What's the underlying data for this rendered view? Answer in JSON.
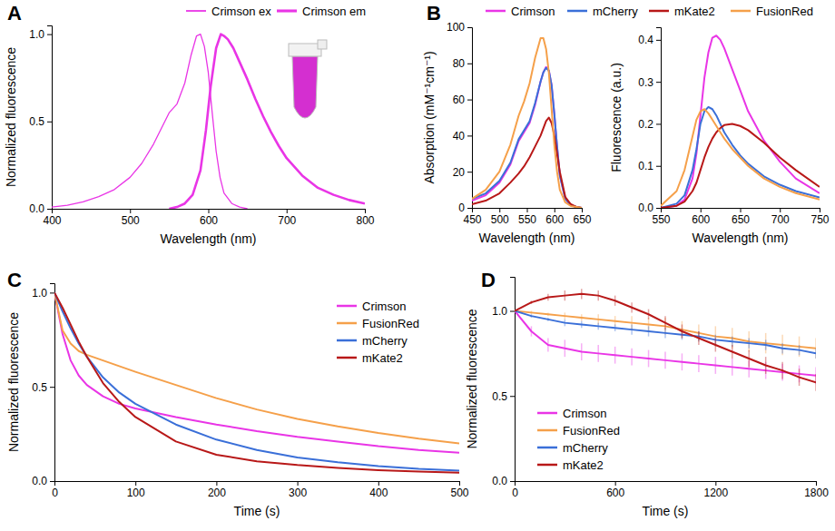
{
  "chart_data": [
    {
      "type": "line",
      "title": "A",
      "x_label": "Wavelength (nm)",
      "y_label": "Normalized fluorescence",
      "xlim": [
        400,
        800
      ],
      "xticks": [
        400,
        500,
        600,
        700,
        800
      ],
      "ylim": [
        0,
        1.05
      ],
      "yticks": [
        {
          "value": 0,
          "label": "0.0"
        },
        {
          "value": 0.5,
          "label": "0.5"
        },
        {
          "value": 1,
          "label": "1.0"
        }
      ],
      "legend": "top",
      "series": [
        {
          "name": "Crimson ex",
          "color": "#e935e6",
          "line_style": "thin",
          "x": [
            400,
            420,
            440,
            460,
            480,
            500,
            515,
            530,
            540,
            550,
            560,
            570,
            578,
            585,
            590,
            595,
            600,
            605,
            610,
            615,
            620,
            630,
            640,
            650
          ],
          "values": [
            0.01,
            0.02,
            0.04,
            0.07,
            0.11,
            0.18,
            0.26,
            0.37,
            0.46,
            0.55,
            0.6,
            0.72,
            0.88,
            0.99,
            1.0,
            0.93,
            0.78,
            0.55,
            0.33,
            0.18,
            0.09,
            0.03,
            0.01,
            0
          ]
        },
        {
          "name": "Crimson em",
          "color": "#e935e6",
          "line_style": "thick",
          "x": [
            550,
            560,
            570,
            580,
            590,
            597,
            603,
            610,
            616,
            620,
            625,
            632,
            640,
            650,
            660,
            670,
            680,
            690,
            700,
            720,
            740,
            760,
            780,
            800
          ],
          "values": [
            0,
            0.01,
            0.03,
            0.08,
            0.22,
            0.45,
            0.7,
            0.92,
            1.0,
            0.99,
            0.97,
            0.92,
            0.84,
            0.74,
            0.63,
            0.53,
            0.44,
            0.36,
            0.29,
            0.19,
            0.12,
            0.08,
            0.05,
            0.03
          ]
        }
      ]
    },
    {
      "type": "line",
      "title": "B",
      "x_label": "Wavelength (nm)",
      "y_label": "Absorption (mM⁻¹cm⁻¹)",
      "xlim": [
        450,
        650
      ],
      "xticks": [
        450,
        500,
        550,
        600,
        650
      ],
      "ylim": [
        0,
        100
      ],
      "yticks": [
        0,
        20,
        40,
        60,
        80,
        100
      ],
      "legend": "top",
      "x": [
        450,
        475,
        500,
        520,
        535,
        545,
        555,
        565,
        575,
        580,
        585,
        590,
        595,
        600,
        605,
        610,
        620,
        630,
        640,
        650
      ],
      "series": [
        {
          "name": "Crimson",
          "color": "#e935e6",
          "values": [
            4,
            7,
            14,
            24,
            37,
            42,
            47,
            57,
            70,
            75,
            78,
            76,
            68,
            52,
            34,
            18,
            5,
            1.5,
            0.5,
            0
          ]
        },
        {
          "name": "mCherry",
          "color": "#3a6fd8",
          "values": [
            5,
            8,
            15,
            25,
            38,
            43,
            48,
            58,
            70,
            75,
            77.5,
            76,
            68,
            52,
            34,
            18,
            5,
            1.5,
            0.5,
            0
          ]
        },
        {
          "name": "mKate2",
          "color": "#b81818",
          "values": [
            2,
            4,
            8,
            14,
            19,
            23,
            28,
            34,
            40,
            44,
            48,
            50,
            47,
            40,
            30,
            20,
            6,
            2,
            0.5,
            0
          ]
        },
        {
          "name": "FusionRed",
          "color": "#f5a04a",
          "values": [
            5,
            10,
            20,
            35,
            51,
            59,
            69,
            83,
            94,
            94,
            88,
            75,
            55,
            35,
            20,
            10,
            3,
            1,
            0.5,
            0
          ]
        }
      ]
    },
    {
      "type": "line",
      "x_label": "Wavelength (nm)",
      "y_label": "Fluorescence (a.u.)",
      "xlim": [
        550,
        750
      ],
      "xticks": [
        550,
        600,
        650,
        700,
        750
      ],
      "ylim": [
        0,
        0.43
      ],
      "yticks": [
        {
          "value": 0,
          "label": "0.0"
        },
        {
          "value": 0.1,
          "label": "0.1"
        },
        {
          "value": 0.2,
          "label": "0.2"
        },
        {
          "value": 0.3,
          "label": "0.3"
        },
        {
          "value": 0.4,
          "label": "0.4"
        }
      ],
      "x": [
        550,
        570,
        580,
        590,
        595,
        600,
        605,
        610,
        615,
        620,
        625,
        630,
        640,
        650,
        660,
        680,
        700,
        720,
        750
      ],
      "series": [
        {
          "color": "#e935e6",
          "values": [
            0,
            0.005,
            0.02,
            0.07,
            0.13,
            0.22,
            0.31,
            0.37,
            0.405,
            0.41,
            0.4,
            0.38,
            0.33,
            0.28,
            0.23,
            0.16,
            0.11,
            0.07,
            0.035
          ]
        },
        {
          "color": "#3a6fd8",
          "values": [
            0,
            0.01,
            0.03,
            0.09,
            0.14,
            0.2,
            0.23,
            0.24,
            0.235,
            0.22,
            0.2,
            0.18,
            0.15,
            0.125,
            0.105,
            0.075,
            0.055,
            0.04,
            0.025
          ]
        },
        {
          "color": "#b81818",
          "values": [
            0,
            0.005,
            0.015,
            0.04,
            0.06,
            0.09,
            0.12,
            0.145,
            0.165,
            0.18,
            0.19,
            0.197,
            0.2,
            0.195,
            0.185,
            0.155,
            0.12,
            0.09,
            0.05
          ]
        },
        {
          "color": "#f5a04a",
          "values": [
            0.005,
            0.04,
            0.09,
            0.17,
            0.21,
            0.23,
            0.235,
            0.225,
            0.21,
            0.195,
            0.18,
            0.165,
            0.14,
            0.12,
            0.1,
            0.07,
            0.05,
            0.035,
            0.02
          ]
        }
      ]
    },
    {
      "type": "line",
      "title": "C",
      "x_label": "Time (s)",
      "y_label": "Normalized fluorescence",
      "xlim": [
        0,
        500
      ],
      "xticks": [
        0,
        100,
        200,
        300,
        400,
        500
      ],
      "ylim": [
        0,
        1.05
      ],
      "yticks": [
        {
          "value": 0,
          "label": "0.0"
        },
        {
          "value": 0.5,
          "label": "0.5"
        },
        {
          "value": 1,
          "label": "1.0"
        }
      ],
      "legend": "upper right",
      "x": [
        0,
        10,
        20,
        30,
        40,
        60,
        80,
        100,
        150,
        200,
        250,
        300,
        350,
        400,
        450,
        500
      ],
      "series": [
        {
          "name": "Crimson",
          "color": "#e935e6",
          "values": [
            1,
            0.78,
            0.64,
            0.56,
            0.51,
            0.45,
            0.41,
            0.385,
            0.34,
            0.3,
            0.265,
            0.235,
            0.21,
            0.185,
            0.165,
            0.15
          ]
        },
        {
          "name": "FusionRed",
          "color": "#f5a04a",
          "values": [
            1,
            0.8,
            0.73,
            0.69,
            0.67,
            0.64,
            0.61,
            0.58,
            0.51,
            0.44,
            0.38,
            0.33,
            0.29,
            0.255,
            0.225,
            0.2
          ]
        },
        {
          "name": "mCherry",
          "color": "#3a6fd8",
          "values": [
            1,
            0.9,
            0.81,
            0.73,
            0.66,
            0.55,
            0.47,
            0.41,
            0.3,
            0.22,
            0.165,
            0.125,
            0.1,
            0.08,
            0.065,
            0.055
          ]
        },
        {
          "name": "mKate2",
          "color": "#b81818",
          "values": [
            1,
            0.92,
            0.83,
            0.74,
            0.66,
            0.52,
            0.42,
            0.34,
            0.21,
            0.14,
            0.105,
            0.085,
            0.07,
            0.058,
            0.05,
            0.045
          ]
        }
      ]
    },
    {
      "type": "line",
      "title": "D",
      "x_label": "Time (s)",
      "y_label": "Normalized fluorescence",
      "xlim": [
        0,
        1800
      ],
      "xticks": [
        0,
        600,
        1200,
        1800
      ],
      "ylim": [
        0,
        1.2
      ],
      "yticks": [
        {
          "value": 0,
          "label": "0.0"
        },
        {
          "value": 0.5,
          "label": "0.5"
        },
        {
          "value": 1,
          "label": "1.0"
        }
      ],
      "legend": "lower left",
      "x": [
        0,
        100,
        200,
        300,
        400,
        500,
        600,
        700,
        800,
        900,
        1000,
        1100,
        1200,
        1300,
        1400,
        1500,
        1600,
        1700,
        1800
      ],
      "series": [
        {
          "name": "Crimson",
          "color": "#e935e6",
          "values": [
            1,
            0.88,
            0.8,
            0.78,
            0.76,
            0.75,
            0.74,
            0.73,
            0.72,
            0.71,
            0.7,
            0.69,
            0.68,
            0.67,
            0.66,
            0.65,
            0.64,
            0.63,
            0.62
          ],
          "errors": [
            0,
            0.03,
            0.04,
            0.05,
            0.05,
            0.05,
            0.05,
            0.05,
            0.05,
            0.05,
            0.05,
            0.05,
            0.05,
            0.05,
            0.05,
            0.05,
            0.05,
            0.05,
            0.05
          ]
        },
        {
          "name": "FusionRed",
          "color": "#f5a04a",
          "values": [
            1,
            0.99,
            0.98,
            0.97,
            0.96,
            0.95,
            0.94,
            0.93,
            0.92,
            0.91,
            0.89,
            0.87,
            0.85,
            0.84,
            0.82,
            0.81,
            0.8,
            0.79,
            0.78
          ],
          "errors": [
            0,
            0.01,
            0.01,
            0.02,
            0.02,
            0.03,
            0.03,
            0.04,
            0.04,
            0.05,
            0.05,
            0.05,
            0.06,
            0.06,
            0.06,
            0.06,
            0.06,
            0.06,
            0.06
          ]
        },
        {
          "name": "mCherry",
          "color": "#3a6fd8",
          "values": [
            1,
            0.97,
            0.95,
            0.93,
            0.92,
            0.91,
            0.9,
            0.89,
            0.88,
            0.87,
            0.86,
            0.85,
            0.83,
            0.82,
            0.81,
            0.8,
            0.78,
            0.77,
            0.75
          ],
          "errors": [
            0,
            0.01,
            0.01,
            0.02,
            0.02,
            0.02,
            0.02,
            0.03,
            0.03,
            0.03,
            0.03,
            0.03,
            0.03,
            0.03,
            0.03,
            0.03,
            0.03,
            0.03,
            0.03
          ]
        },
        {
          "name": "mKate2",
          "color": "#b81818",
          "values": [
            1,
            1.05,
            1.08,
            1.09,
            1.1,
            1.09,
            1.06,
            1.02,
            0.98,
            0.93,
            0.88,
            0.84,
            0.8,
            0.76,
            0.72,
            0.68,
            0.65,
            0.61,
            0.58
          ],
          "errors": [
            0,
            0.01,
            0.02,
            0.03,
            0.03,
            0.03,
            0.03,
            0.03,
            0.03,
            0.04,
            0.04,
            0.04,
            0.04,
            0.04,
            0.05,
            0.05,
            0.05,
            0.05,
            0.05
          ]
        }
      ]
    }
  ]
}
